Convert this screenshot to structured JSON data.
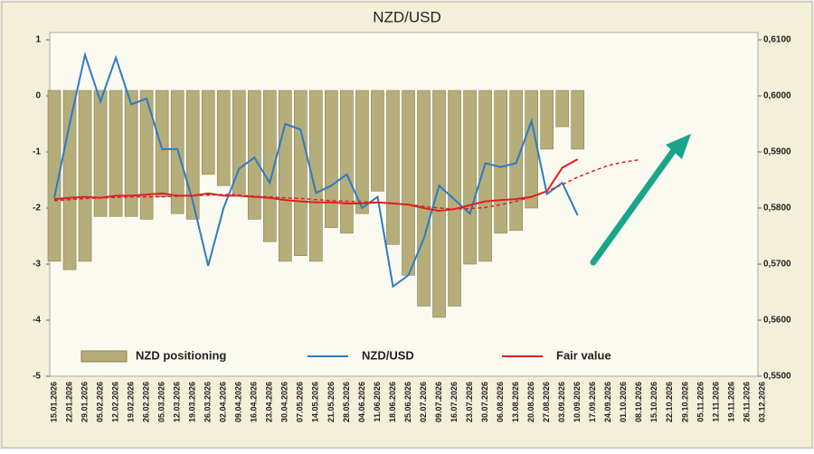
{
  "chart_data": {
    "type": "bar-line",
    "title": "NZD/USD",
    "categories": [
      "15.01.2026",
      "22.01.2026",
      "29.01.2026",
      "05.02.2026",
      "12.02.2026",
      "19.02.2026",
      "26.02.2026",
      "05.03.2026",
      "12.03.2026",
      "19.03.2026",
      "26.03.2026",
      "02.04.2026",
      "09.04.2026",
      "16.04.2026",
      "23.04.2026",
      "30.04.2026",
      "07.05.2026",
      "14.05.2026",
      "21.05.2026",
      "28.05.2026",
      "04.06.2026",
      "11.06.2026",
      "18.06.2026",
      "25.06.2026",
      "02.07.2026",
      "09.07.2026",
      "16.07.2026",
      "23.07.2026",
      "30.07.2026",
      "06.08.2026",
      "13.08.2026",
      "20.08.2026",
      "27.08.2026",
      "03.09.2026",
      "10.09.2026",
      "17.09.2026",
      "24.09.2026",
      "01.10.2026",
      "08.10.2026",
      "15.10.2026",
      "22.10.2026",
      "29.10.2026",
      "05.11.2026",
      "12.11.2026",
      "19.11.2026",
      "26.11.2026",
      "03.12.2026"
    ],
    "series": [
      {
        "name": "NZD positioning",
        "kind": "bar",
        "color": "#b5ad7a",
        "axis": "y",
        "values": [
          -2.95,
          -3.1,
          -2.95,
          -2.15,
          -2.15,
          -2.15,
          -2.2,
          -1.8,
          -2.1,
          -2.2,
          -1.4,
          -1.6,
          -1.75,
          -2.2,
          -2.6,
          -2.95,
          -2.85,
          -2.95,
          -2.35,
          -2.45,
          -2.1,
          -1.7,
          -2.65,
          -3.2,
          -3.75,
          -3.95,
          -3.75,
          -3.0,
          -2.95,
          -2.45,
          -2.4,
          -2.0,
          -0.95,
          -0.55,
          -0.95,
          null,
          null,
          null,
          null,
          null,
          null,
          null,
          null,
          null,
          null,
          null,
          null
        ]
      },
      {
        "name": "NZD/USD",
        "kind": "line",
        "color": "#2e7bc4",
        "axis": "y2",
        "values": [
          0.5818,
          0.595,
          0.6073,
          0.599,
          0.6068,
          0.5985,
          0.5995,
          0.5905,
          0.5905,
          0.5812,
          0.5697,
          0.58,
          0.587,
          0.589,
          0.5845,
          0.595,
          0.594,
          0.5827,
          0.584,
          0.586,
          0.58,
          0.582,
          0.566,
          0.568,
          0.5745,
          0.584,
          0.5815,
          0.579,
          0.588,
          0.5873,
          0.588,
          0.5955,
          0.5825,
          0.5845,
          0.5787,
          null,
          null,
          null,
          null,
          null,
          null,
          null,
          null,
          null,
          null,
          null,
          null
        ]
      },
      {
        "name": "Fair value",
        "kind": "line",
        "color": "#e02020",
        "axis": "y2",
        "values": [
          0.5816,
          0.5818,
          0.582,
          0.5818,
          0.5822,
          0.5822,
          0.5824,
          0.5826,
          0.5822,
          0.5822,
          0.5826,
          0.5822,
          0.5822,
          0.582,
          0.5818,
          0.5814,
          0.5812,
          0.581,
          0.581,
          0.5808,
          0.5808,
          0.581,
          0.5808,
          0.5806,
          0.58,
          0.5795,
          0.5798,
          0.5805,
          0.5812,
          0.5814,
          0.5816,
          0.582,
          0.583,
          0.5872,
          0.5887,
          null,
          null,
          null,
          null,
          null,
          null,
          null,
          null,
          null,
          null,
          null,
          null
        ]
      },
      {
        "kind": "line",
        "dashed": true,
        "color": "#e02020",
        "axis": "y2",
        "values": [
          0.5813,
          0.5815,
          0.5817,
          0.5818,
          0.5819,
          0.582,
          0.582,
          0.582,
          0.5821,
          0.5822,
          0.5823,
          0.5824,
          0.5823,
          0.5821,
          0.582,
          0.5818,
          0.5817,
          0.5815,
          0.5813,
          0.5812,
          0.5811,
          0.581,
          0.5808,
          0.5806,
          0.5803,
          0.58,
          0.5798,
          0.5799,
          0.5801,
          0.5806,
          0.5812,
          0.582,
          0.583,
          0.5842,
          0.5855,
          0.5866,
          0.5876,
          0.5882,
          0.5886,
          null,
          null,
          null,
          null,
          null,
          null,
          null,
          null
        ]
      }
    ],
    "ylim": [
      -5,
      1
    ],
    "yticks": [
      -5,
      -4,
      -3,
      -2,
      -1,
      0,
      1
    ],
    "y2lim": [
      0.55,
      0.61
    ],
    "y2ticks": [
      {
        "value": 0.55,
        "label": "0,5500"
      },
      {
        "value": 0.56,
        "label": "0,5600"
      },
      {
        "value": 0.57,
        "label": "0,5700"
      },
      {
        "value": 0.58,
        "label": "0,5800"
      },
      {
        "value": 0.59,
        "label": "0,5900"
      },
      {
        "value": 0.6,
        "label": "0,6000"
      },
      {
        "value": 0.61,
        "label": "0,6100"
      }
    ]
  }
}
